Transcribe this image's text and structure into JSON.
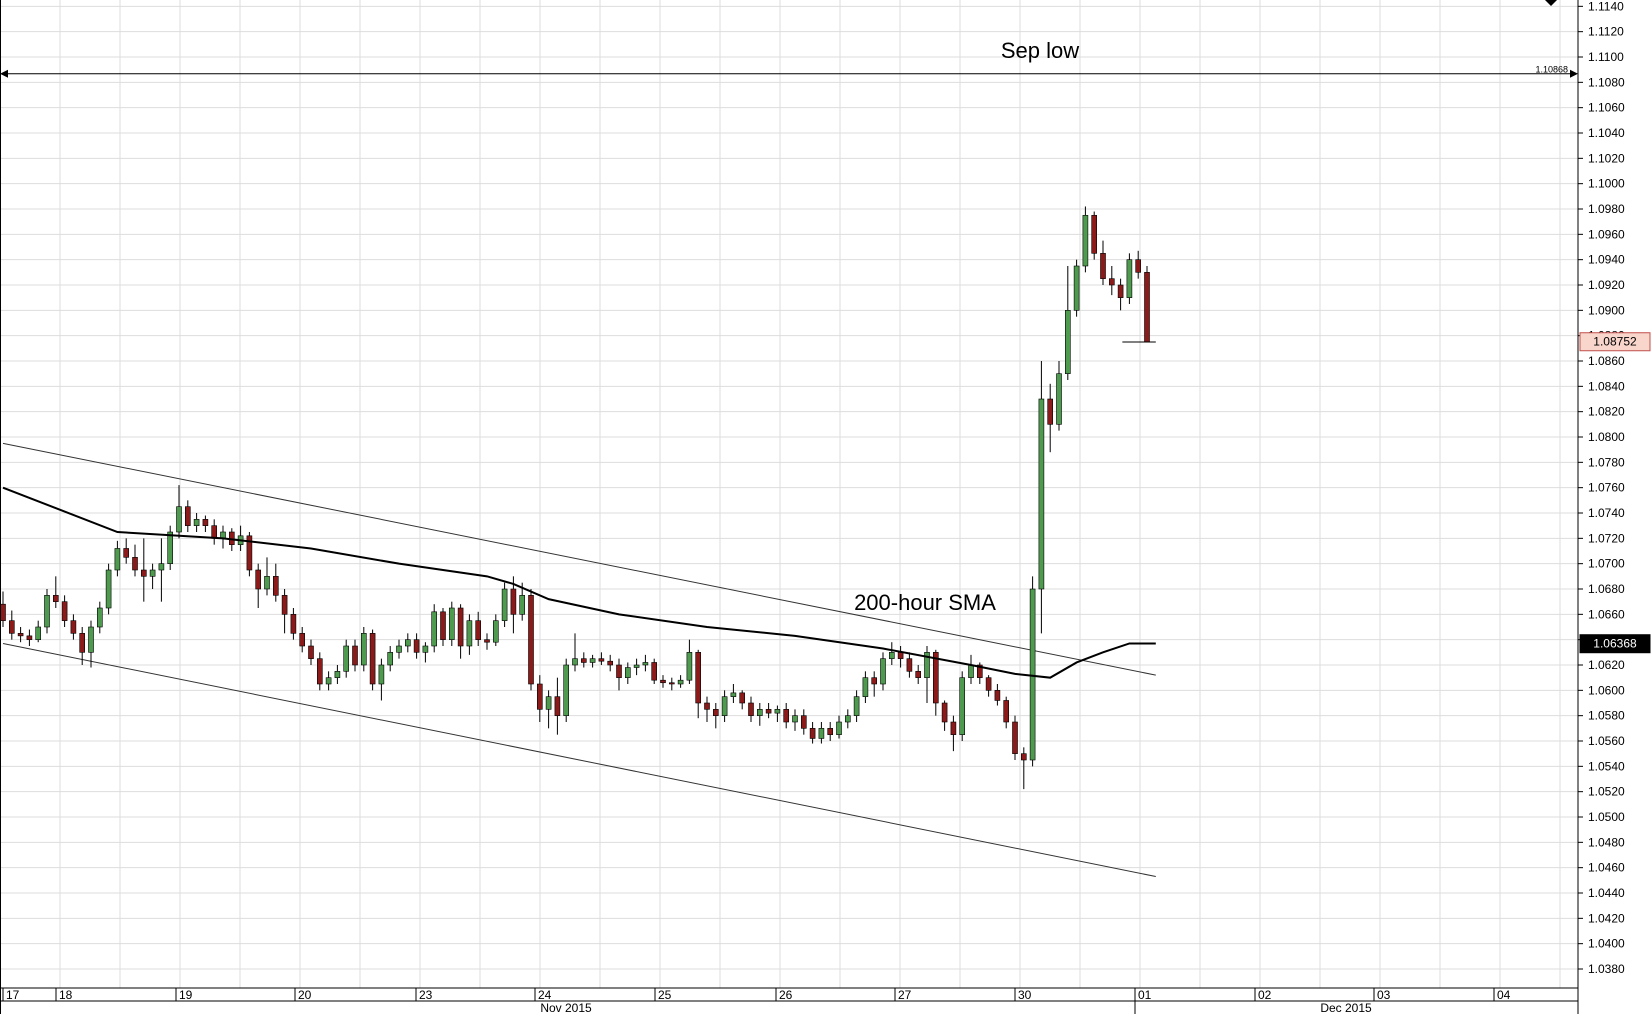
{
  "chart_data": {
    "type": "candlestick",
    "instrument_timeframe": "hourly",
    "x_axis": {
      "day_ticks": [
        "17",
        "18",
        "19",
        "20",
        "23",
        "24",
        "25",
        "26",
        "27",
        "30",
        "01",
        "02",
        "03",
        "04"
      ],
      "month_labels": [
        "Nov 2015",
        "Dec 2015"
      ]
    },
    "y_axis": {
      "ylim": [
        1.0365,
        1.1145
      ],
      "tick_step": 0.002,
      "tick_decimals": 4,
      "position": "right",
      "grid": true
    },
    "annotations": {
      "sep_low": {
        "label": "Sep low",
        "value": 1.10868,
        "value_label": "1.10868"
      },
      "sma": {
        "label": "200-hour SMA"
      }
    },
    "price_boxes": {
      "last_price": {
        "value": 1.08752,
        "label": "1.08752",
        "fill": "#f8d6cc",
        "border": "#c0504d",
        "text_color": "#000000"
      },
      "sma_value": {
        "value": 1.06368,
        "label": "1.06368",
        "fill": "#000000",
        "text_color": "#ffffff"
      }
    },
    "channel_lines": {
      "upper": {
        "start": [
          0,
          1.0795
        ],
        "end": [
          131,
          1.0612
        ]
      },
      "lower": {
        "start": [
          0,
          1.0637
        ],
        "end": [
          131,
          1.0453
        ]
      }
    },
    "sma_series": {
      "name": "200-hour SMA",
      "points": [
        [
          0,
          1.076
        ],
        [
          13,
          1.0725
        ],
        [
          25,
          1.072
        ],
        [
          35,
          1.0712
        ],
        [
          45,
          1.07
        ],
        [
          55,
          1.069
        ],
        [
          58,
          1.0684
        ],
        [
          62,
          1.0672
        ],
        [
          70,
          1.066
        ],
        [
          80,
          1.065
        ],
        [
          90,
          1.0643
        ],
        [
          100,
          1.0633
        ],
        [
          110,
          1.062
        ],
        [
          115,
          1.0613
        ],
        [
          119,
          1.061
        ],
        [
          122,
          1.0622
        ],
        [
          125,
          1.063
        ],
        [
          128,
          1.0637
        ],
        [
          131,
          1.0637
        ]
      ]
    },
    "last_price_series": {
      "points": [
        [
          127.2,
          1.0875
        ],
        [
          131,
          1.0875
        ]
      ]
    },
    "colors": {
      "up": "#4e9a4e",
      "down": "#8b1a1a",
      "grid": "#dddddd",
      "axis": "#000000"
    },
    "candles": {
      "fields": [
        "o",
        "h",
        "l",
        "c"
      ],
      "values": [
        [
          1.0668,
          1.0678,
          1.065,
          1.0655
        ],
        [
          1.0655,
          1.0663,
          1.064,
          1.0645
        ],
        [
          1.0645,
          1.065,
          1.0638,
          1.0643
        ],
        [
          1.0643,
          1.0648,
          1.0635,
          1.064
        ],
        [
          1.064,
          1.0655,
          1.0638,
          1.065
        ],
        [
          1.065,
          1.068,
          1.0645,
          1.0675
        ],
        [
          1.0675,
          1.069,
          1.0665,
          1.067
        ],
        [
          1.067,
          1.0675,
          1.065,
          1.0655
        ],
        [
          1.0655,
          1.066,
          1.064,
          1.0645
        ],
        [
          1.0645,
          1.065,
          1.062,
          1.063
        ],
        [
          1.063,
          1.0655,
          1.0618,
          1.065
        ],
        [
          1.065,
          1.067,
          1.0645,
          1.0665
        ],
        [
          1.0665,
          1.07,
          1.066,
          1.0695
        ],
        [
          1.0695,
          1.0718,
          1.069,
          1.0712
        ],
        [
          1.0712,
          1.072,
          1.07,
          1.0705
        ],
        [
          1.0705,
          1.0715,
          1.069,
          1.0695
        ],
        [
          1.0695,
          1.072,
          1.067,
          1.069
        ],
        [
          1.069,
          1.07,
          1.068,
          1.0695
        ],
        [
          1.0695,
          1.072,
          1.067,
          1.07
        ],
        [
          1.07,
          1.073,
          1.0695,
          1.0725
        ],
        [
          1.0725,
          1.0762,
          1.072,
          1.0745
        ],
        [
          1.0745,
          1.075,
          1.0725,
          1.073
        ],
        [
          1.073,
          1.074,
          1.0725,
          1.0735
        ],
        [
          1.0735,
          1.0738,
          1.0725,
          1.073
        ],
        [
          1.073,
          1.0735,
          1.0715,
          1.072
        ],
        [
          1.072,
          1.073,
          1.0712,
          1.0725
        ],
        [
          1.0725,
          1.0728,
          1.071,
          1.0715
        ],
        [
          1.0715,
          1.073,
          1.071,
          1.0722
        ],
        [
          1.0722,
          1.0725,
          1.069,
          1.0695
        ],
        [
          1.0695,
          1.07,
          1.0665,
          1.068
        ],
        [
          1.068,
          1.0705,
          1.0675,
          1.069
        ],
        [
          1.069,
          1.07,
          1.067,
          1.0675
        ],
        [
          1.0675,
          1.068,
          1.0645,
          1.066
        ],
        [
          1.066,
          1.0665,
          1.064,
          1.0645
        ],
        [
          1.0645,
          1.065,
          1.063,
          1.0635
        ],
        [
          1.0635,
          1.064,
          1.062,
          1.0625
        ],
        [
          1.0625,
          1.063,
          1.06,
          1.0605
        ],
        [
          1.0605,
          1.0615,
          1.06,
          1.061
        ],
        [
          1.061,
          1.062,
          1.0605,
          1.0615
        ],
        [
          1.0615,
          1.064,
          1.061,
          1.0635
        ],
        [
          1.0635,
          1.064,
          1.0615,
          1.062
        ],
        [
          1.062,
          1.065,
          1.0615,
          1.0645
        ],
        [
          1.0645,
          1.0648,
          1.06,
          1.0605
        ],
        [
          1.0605,
          1.0625,
          1.0592,
          1.062
        ],
        [
          1.062,
          1.0635,
          1.0615,
          1.063
        ],
        [
          1.063,
          1.064,
          1.0625,
          1.0635
        ],
        [
          1.0635,
          1.0645,
          1.063,
          1.064
        ],
        [
          1.064,
          1.0645,
          1.0625,
          1.063
        ],
        [
          1.063,
          1.0638,
          1.0622,
          1.0635
        ],
        [
          1.0635,
          1.0668,
          1.063,
          1.0662
        ],
        [
          1.0662,
          1.0665,
          1.0635,
          1.064
        ],
        [
          1.064,
          1.067,
          1.0635,
          1.0665
        ],
        [
          1.0665,
          1.0668,
          1.0625,
          1.0635
        ],
        [
          1.0635,
          1.066,
          1.0628,
          1.0655
        ],
        [
          1.0655,
          1.0662,
          1.0635,
          1.064
        ],
        [
          1.064,
          1.0645,
          1.0632,
          1.0638
        ],
        [
          1.0638,
          1.066,
          1.0635,
          1.0655
        ],
        [
          1.0655,
          1.0685,
          1.065,
          1.068
        ],
        [
          1.068,
          1.069,
          1.0645,
          1.066
        ],
        [
          1.066,
          1.0685,
          1.0655,
          1.0675
        ],
        [
          1.0675,
          1.068,
          1.06,
          1.0605
        ],
        [
          1.0605,
          1.0612,
          1.0575,
          1.0585
        ],
        [
          1.0585,
          1.06,
          1.057,
          1.0595
        ],
        [
          1.0595,
          1.061,
          1.0565,
          1.058
        ],
        [
          1.058,
          1.0625,
          1.0575,
          1.062
        ],
        [
          1.062,
          1.0645,
          1.0615,
          1.0625
        ],
        [
          1.0625,
          1.063,
          1.0618,
          1.0622
        ],
        [
          1.0622,
          1.0628,
          1.0618,
          1.0625
        ],
        [
          1.0625,
          1.063,
          1.062,
          1.0623
        ],
        [
          1.0623,
          1.0628,
          1.0615,
          1.062
        ],
        [
          1.062,
          1.0625,
          1.06,
          1.061
        ],
        [
          1.061,
          1.0622,
          1.0605,
          1.0618
        ],
        [
          1.0618,
          1.0625,
          1.0612,
          1.062
        ],
        [
          1.062,
          1.0628,
          1.0615,
          1.0622
        ],
        [
          1.0622,
          1.0625,
          1.0605,
          1.0608
        ],
        [
          1.0608,
          1.0612,
          1.0602,
          1.0606
        ],
        [
          1.0606,
          1.061,
          1.06,
          1.0605
        ],
        [
          1.0605,
          1.0612,
          1.0602,
          1.0608
        ],
        [
          1.0608,
          1.064,
          1.0605,
          1.063
        ],
        [
          1.063,
          1.0632,
          1.0578,
          1.059
        ],
        [
          1.059,
          1.0595,
          1.0575,
          1.0585
        ],
        [
          1.0585,
          1.059,
          1.057,
          1.058
        ],
        [
          1.058,
          1.06,
          1.0575,
          1.0595
        ],
        [
          1.0595,
          1.0605,
          1.059,
          1.0598
        ],
        [
          1.0598,
          1.06,
          1.0585,
          1.059
        ],
        [
          1.059,
          1.0595,
          1.0575,
          1.058
        ],
        [
          1.058,
          1.059,
          1.0572,
          1.0585
        ],
        [
          1.0585,
          1.059,
          1.0578,
          1.0582
        ],
        [
          1.0582,
          1.0588,
          1.0575,
          1.0585
        ],
        [
          1.0585,
          1.059,
          1.057,
          1.0575
        ],
        [
          1.0575,
          1.0585,
          1.0568,
          1.058
        ],
        [
          1.058,
          1.0585,
          1.0565,
          1.057
        ],
        [
          1.057,
          1.0575,
          1.0558,
          1.0562
        ],
        [
          1.0562,
          1.0575,
          1.0558,
          1.057
        ],
        [
          1.057,
          1.0575,
          1.056,
          1.0565
        ],
        [
          1.0565,
          1.058,
          1.0562,
          1.0575
        ],
        [
          1.0575,
          1.0585,
          1.057,
          1.058
        ],
        [
          1.058,
          1.06,
          1.0575,
          1.0595
        ],
        [
          1.0595,
          1.0615,
          1.059,
          1.061
        ],
        [
          1.061,
          1.0615,
          1.0595,
          1.0605
        ],
        [
          1.0605,
          1.063,
          1.06,
          1.0625
        ],
        [
          1.0625,
          1.0638,
          1.062,
          1.063
        ],
        [
          1.063,
          1.0635,
          1.0618,
          1.0625
        ],
        [
          1.0625,
          1.063,
          1.061,
          1.0615
        ],
        [
          1.0615,
          1.062,
          1.0605,
          1.061
        ],
        [
          1.061,
          1.0635,
          1.059,
          1.063
        ],
        [
          1.063,
          1.0632,
          1.058,
          1.059
        ],
        [
          1.059,
          1.0592,
          1.0568,
          1.0575
        ],
        [
          1.0575,
          1.058,
          1.0552,
          1.0565
        ],
        [
          1.0565,
          1.0615,
          1.056,
          1.061
        ],
        [
          1.061,
          1.0628,
          1.0605,
          1.062
        ],
        [
          1.062,
          1.0622,
          1.0605,
          1.061
        ],
        [
          1.061,
          1.0612,
          1.0595,
          1.06
        ],
        [
          1.06,
          1.0605,
          1.0588,
          1.0592
        ],
        [
          1.0592,
          1.0595,
          1.057,
          1.0575
        ],
        [
          1.0575,
          1.058,
          1.0545,
          1.055
        ],
        [
          1.055,
          1.0555,
          1.0522,
          1.0545
        ],
        [
          1.0545,
          1.069,
          1.054,
          1.068
        ],
        [
          1.068,
          1.086,
          1.0645,
          1.083
        ],
        [
          1.083,
          1.0842,
          1.0788,
          1.081
        ],
        [
          1.081,
          1.086,
          1.0805,
          1.085
        ],
        [
          1.085,
          1.0935,
          1.0845,
          1.09
        ],
        [
          1.09,
          1.094,
          1.0895,
          1.0935
        ],
        [
          1.0935,
          1.0982,
          1.093,
          1.0975
        ],
        [
          1.0975,
          1.0978,
          1.094,
          1.0945
        ],
        [
          1.0945,
          1.0955,
          1.092,
          1.0925
        ],
        [
          1.0925,
          1.0935,
          1.0912,
          1.092
        ],
        [
          1.092,
          1.0925,
          1.09,
          1.091
        ],
        [
          1.091,
          1.0945,
          1.0905,
          1.094
        ],
        [
          1.094,
          1.0947,
          1.0925,
          1.093
        ],
        [
          1.093,
          1.0935,
          1.0875,
          1.0875
        ]
      ]
    }
  }
}
